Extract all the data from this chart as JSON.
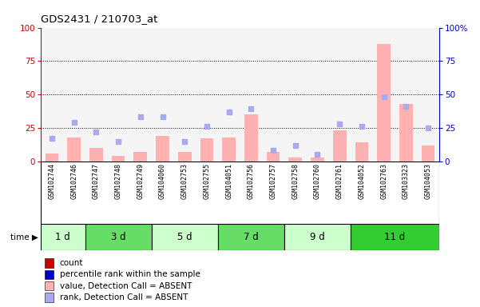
{
  "title": "GDS2431 / 210703_at",
  "samples": [
    "GSM102744",
    "GSM102746",
    "GSM102747",
    "GSM102748",
    "GSM102749",
    "GSM104060",
    "GSM102753",
    "GSM102755",
    "GSM104051",
    "GSM102756",
    "GSM102757",
    "GSM102758",
    "GSM102760",
    "GSM102761",
    "GSM104052",
    "GSM102763",
    "GSM103323",
    "GSM104053"
  ],
  "time_groups": [
    {
      "label": "1 d",
      "start": 0,
      "end": 2,
      "color": "#ccffcc"
    },
    {
      "label": "3 d",
      "start": 2,
      "end": 5,
      "color": "#66dd66"
    },
    {
      "label": "5 d",
      "start": 5,
      "end": 8,
      "color": "#ccffcc"
    },
    {
      "label": "7 d",
      "start": 8,
      "end": 11,
      "color": "#66dd66"
    },
    {
      "label": "9 d",
      "start": 11,
      "end": 14,
      "color": "#ccffcc"
    },
    {
      "label": "11 d",
      "start": 14,
      "end": 18,
      "color": "#33cc33"
    }
  ],
  "absent_value": [
    6,
    18,
    10,
    4,
    7,
    19,
    7,
    17,
    18,
    35,
    7,
    3,
    3,
    23,
    14,
    88,
    43,
    12
  ],
  "absent_rank": [
    17,
    29,
    22,
    15,
    33,
    33,
    15,
    26,
    37,
    39,
    8,
    12,
    5,
    28,
    26,
    48,
    41,
    25
  ],
  "ylim": [
    0,
    100
  ],
  "yticks": [
    0,
    25,
    50,
    75,
    100
  ],
  "gridlines": [
    25,
    50,
    75
  ],
  "bar_color": "#ffb0b0",
  "dot_color": "#aaaaee",
  "left_axis_color": "#cc0000",
  "right_axis_color": "#0000cc",
  "bg_plot": "#f5f5f5",
  "bg_samples": "#d0d0d0",
  "legend_items": [
    {
      "color": "#cc0000",
      "label": "count"
    },
    {
      "color": "#0000cc",
      "label": "percentile rank within the sample"
    },
    {
      "color": "#ffb0b0",
      "label": "value, Detection Call = ABSENT"
    },
    {
      "color": "#aaaaee",
      "label": "rank, Detection Call = ABSENT"
    }
  ]
}
